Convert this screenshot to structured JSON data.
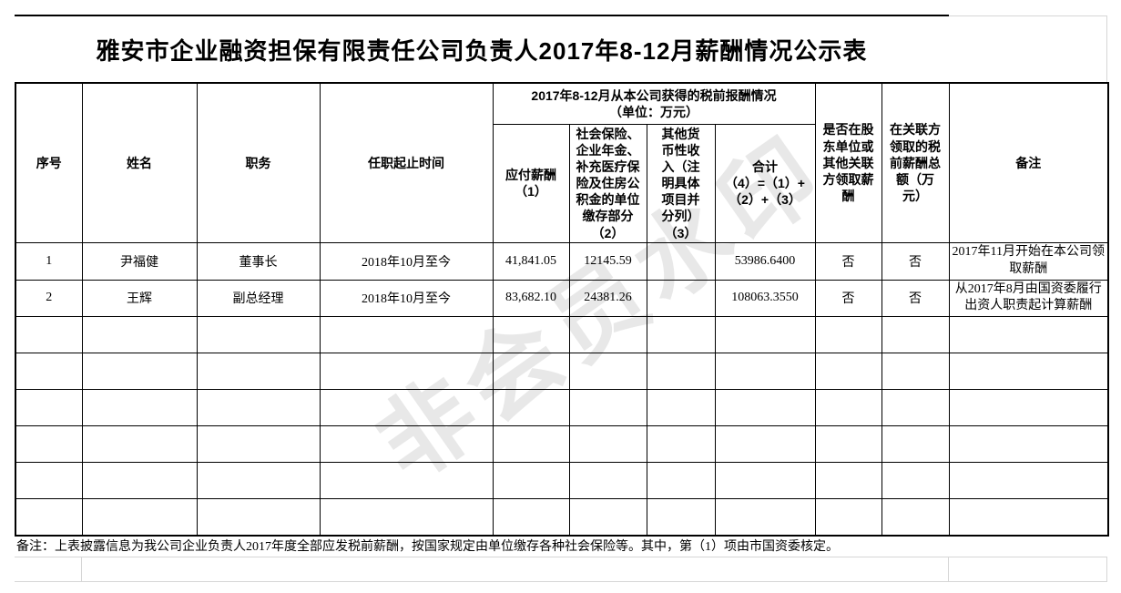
{
  "page_title": "雅安市企业融资担保有限责任公司负责人2017年8-12月薪酬情况公示表",
  "watermark_text": "非会员水印",
  "colors": {
    "border": "#000000",
    "gridline": "#d6d6d6",
    "text": "#000000"
  },
  "table": {
    "headers": {
      "seq": "序号",
      "name": "姓名",
      "position": "职务",
      "tenure": "任职起止时间",
      "group": "2017年8-12月从本公司获得的税前报酬情况\n（单位：万元）",
      "pay": "应付薪酬\n（1）",
      "social": "社会保险、\n企业年金、\n补充医疗保\n险及住房公\n积金的单位\n缴存部分\n（2）",
      "other": "其他货\n币性收\n入（注\n明具体\n项目并\n分列）\n（3）",
      "total": "合计\n（4）=（1）+\n（2）+（3）",
      "shareholder": "是否在股\n东单位或\n其他关联\n方领取薪\n酬",
      "related": "在关联方\n领取的税\n前薪酬总\n额（万\n元）",
      "remark": "备注"
    },
    "rows": [
      {
        "seq": "1",
        "name": "尹福健",
        "position": "董事长",
        "tenure": "2018年10月至今",
        "pay": "41,841.05",
        "social": "12145.59",
        "other": "",
        "total": "53986.6400",
        "shareholder": "否",
        "related": "否",
        "remark": "2017年11月开始在本公司领取薪酬"
      },
      {
        "seq": "2",
        "name": "王辉",
        "position": "副总经理",
        "tenure": "2018年10月至今",
        "pay": "83,682.10",
        "social": "24381.26",
        "other": "",
        "total": "108063.3550",
        "shareholder": "否",
        "related": "否",
        "remark": "从2017年8月由国资委履行出资人职责起计算薪酬"
      }
    ],
    "empty_row_count": 6
  },
  "footnote": "备注：上表披露信息为我公司企业负责人2017年度全部应发税前薪酬，按国家规定由单位缴存各种社会保险等。其中，第（1）项由市国资委核定。"
}
